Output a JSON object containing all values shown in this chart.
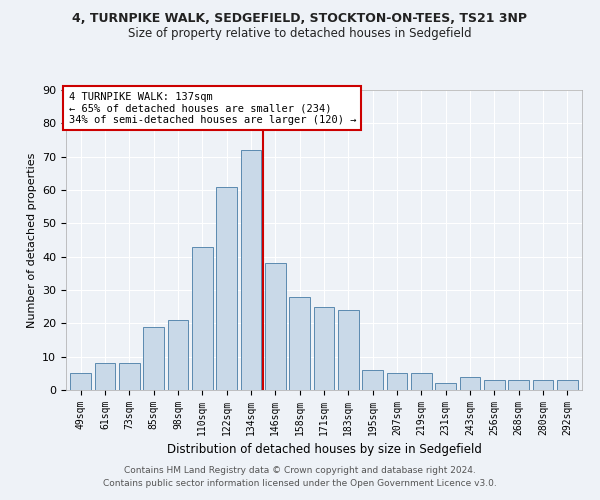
{
  "title": "4, TURNPIKE WALK, SEDGEFIELD, STOCKTON-ON-TEES, TS21 3NP",
  "subtitle": "Size of property relative to detached houses in Sedgefield",
  "xlabel": "Distribution of detached houses by size in Sedgefield",
  "ylabel": "Number of detached properties",
  "categories": [
    "49sqm",
    "61sqm",
    "73sqm",
    "85sqm",
    "98sqm",
    "110sqm",
    "122sqm",
    "134sqm",
    "146sqm",
    "158sqm",
    "171sqm",
    "183sqm",
    "195sqm",
    "207sqm",
    "219sqm",
    "231sqm",
    "243sqm",
    "256sqm",
    "268sqm",
    "280sqm",
    "292sqm"
  ],
  "values": [
    5,
    8,
    8,
    19,
    21,
    43,
    61,
    72,
    38,
    28,
    25,
    24,
    6,
    5,
    5,
    2,
    4,
    3,
    3,
    3,
    3
  ],
  "bar_color": "#c9d9e8",
  "bar_edge_color": "#5a8ab0",
  "vline_color": "#cc0000",
  "box_text_line1": "4 TURNPIKE WALK: 137sqm",
  "box_text_line2": "← 65% of detached houses are smaller (234)",
  "box_text_line3": "34% of semi-detached houses are larger (120) →",
  "box_edge_color": "#cc0000",
  "ylim": [
    0,
    90
  ],
  "yticks": [
    0,
    10,
    20,
    30,
    40,
    50,
    60,
    70,
    80,
    90
  ],
  "footer_line1": "Contains HM Land Registry data © Crown copyright and database right 2024.",
  "footer_line2": "Contains public sector information licensed under the Open Government Licence v3.0.",
  "bg_color": "#eef2f7",
  "plot_bg": "#eef2f7",
  "grid_color": "#ffffff"
}
